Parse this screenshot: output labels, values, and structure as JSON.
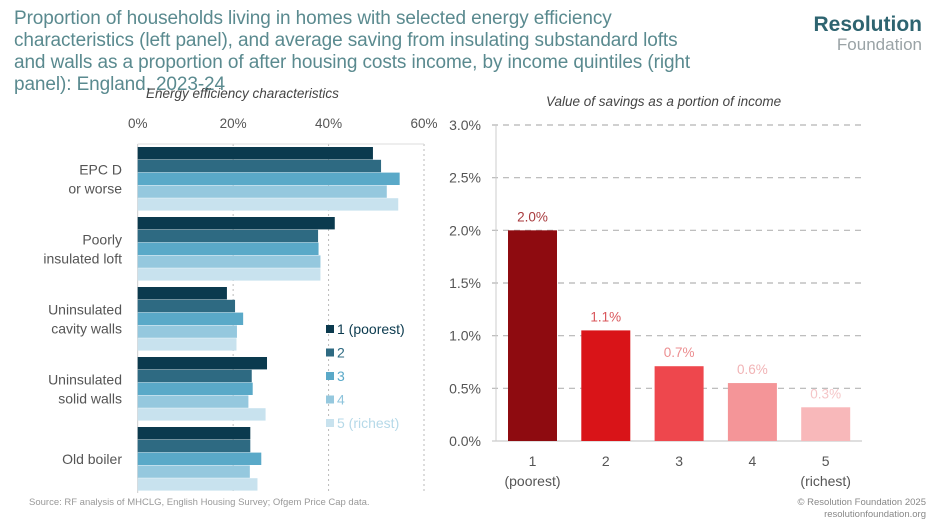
{
  "header": {
    "title": "Proportion of households living in homes with selected energy efficiency characteristics (left panel), and average saving from insulating substandard lofts and walls as a proportion of after housing costs income, by income quintiles (right panel): England, 2023-24",
    "logo_line1": "Resolution",
    "logo_line2": "Foundation"
  },
  "footer": {
    "source": "Source: RF analysis of MHCLG, English Housing Survey; Ofgem Price Cap data.",
    "copyright": "© Resolution Foundation 2025",
    "website": "resolutionfoundation.org"
  },
  "chart_data": [
    {
      "type": "bar",
      "orientation": "horizontal",
      "title": "Energy efficiency characteristics",
      "xlabel": "",
      "ylabel": "",
      "xlim": [
        0,
        60
      ],
      "x_ticks": [
        "0%",
        "20%",
        "40%",
        "60%"
      ],
      "x_tick_values": [
        0,
        20,
        40,
        60
      ],
      "categories": [
        [
          "EPC D",
          "or worse"
        ],
        [
          "Poorly",
          "insulated loft"
        ],
        [
          "Uninsulated",
          "cavity walls"
        ],
        [
          "Uninsulated",
          "solid walls"
        ],
        [
          "Old boiler"
        ]
      ],
      "legend_position": "right",
      "series": [
        {
          "name": "1 (poorest)",
          "color": "#0b3a4e",
          "values": [
            49.3,
            41.3,
            18.7,
            27.1,
            23.6
          ]
        },
        {
          "name": "2",
          "color": "#2e6a82",
          "values": [
            51.0,
            37.8,
            20.4,
            23.9,
            23.6
          ]
        },
        {
          "name": "3",
          "color": "#5aa9c8",
          "values": [
            54.9,
            37.9,
            22.1,
            24.1,
            25.9
          ]
        },
        {
          "name": "4",
          "color": "#95c8de",
          "values": [
            52.2,
            38.3,
            20.8,
            23.2,
            23.5
          ]
        },
        {
          "name": "5 (richest)",
          "color": "#c8e2ee",
          "values": [
            54.6,
            38.3,
            20.7,
            26.8,
            25.1
          ]
        }
      ],
      "grid": true
    },
    {
      "type": "bar",
      "orientation": "vertical",
      "title": "Value of savings as a portion of income",
      "xlabel": "",
      "ylabel": "",
      "ylim": [
        0,
        3.0
      ],
      "y_ticks": [
        "0.0%",
        "0.5%",
        "1.0%",
        "1.5%",
        "2.0%",
        "2.5%",
        "3.0%"
      ],
      "y_tick_values": [
        0,
        0.5,
        1.0,
        1.5,
        2.0,
        2.5,
        3.0
      ],
      "categories": [
        [
          "1",
          "(poorest)"
        ],
        [
          "2"
        ],
        [
          "3"
        ],
        [
          "4"
        ],
        [
          "5",
          "(richest)"
        ]
      ],
      "values": [
        2.0,
        1.05,
        0.71,
        0.55,
        0.32
      ],
      "data_labels": [
        "2.0%",
        "1.1%",
        "0.7%",
        "0.6%",
        "0.3%"
      ],
      "colors": [
        "#8e0b10",
        "#d91418",
        "#ee474d",
        "#f49598",
        "#f8b8ba"
      ],
      "label_colors": [
        "#a83a3d",
        "#d9555a",
        "#ec8e90",
        "#f1b3b5",
        "#f5c6c8"
      ],
      "grid": true
    }
  ]
}
